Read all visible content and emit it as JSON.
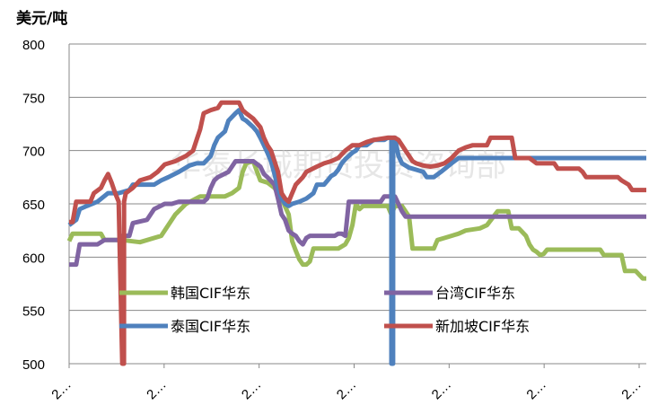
{
  "chart_data": {
    "type": "line",
    "unit_label": "美元/吨",
    "ylim": [
      500,
      800
    ],
    "y_ticks": [
      500,
      550,
      600,
      650,
      700,
      750,
      800
    ],
    "grid": true,
    "x_tick_labels": [
      "2…",
      "2…",
      "2…",
      "2…",
      "2…",
      "2…",
      "2…"
    ],
    "watermark": "华泰长城期货投资咨询部",
    "legend_placement": "bottom-inside",
    "series": [
      {
        "name": "韩国CIF华东",
        "color": "#9BBB59",
        "values": [
          [
            0,
            615
          ],
          [
            1,
            622
          ],
          [
            9,
            622
          ],
          [
            10,
            616
          ],
          [
            15,
            616
          ],
          [
            20,
            614
          ],
          [
            26,
            620
          ],
          [
            30,
            640
          ],
          [
            33,
            650
          ],
          [
            37,
            657
          ],
          [
            44,
            657
          ],
          [
            46,
            660
          ],
          [
            48,
            665
          ],
          [
            49,
            680
          ],
          [
            50,
            688
          ],
          [
            52,
            690
          ],
          [
            54,
            672
          ],
          [
            56,
            670
          ],
          [
            58,
            665
          ],
          [
            60,
            655
          ],
          [
            62,
            640
          ],
          [
            63,
            615
          ],
          [
            64,
            606
          ],
          [
            65,
            598
          ],
          [
            66,
            593
          ],
          [
            67,
            593
          ],
          [
            68,
            596
          ],
          [
            69,
            608
          ],
          [
            72,
            608
          ],
          [
            76,
            608
          ],
          [
            78,
            612
          ],
          [
            79,
            618
          ],
          [
            80,
            630
          ],
          [
            81,
            650
          ],
          [
            82,
            645
          ],
          [
            83,
            648
          ],
          [
            84,
            648
          ],
          [
            85,
            648
          ],
          [
            88,
            648
          ],
          [
            90,
            648
          ],
          [
            91,
            640
          ],
          [
            92,
            648
          ],
          [
            94,
            648
          ],
          [
            96,
            638
          ],
          [
            97,
            608
          ],
          [
            101,
            608
          ],
          [
            103,
            608
          ],
          [
            104,
            616
          ],
          [
            106,
            618
          ],
          [
            108,
            620
          ],
          [
            110,
            622
          ],
          [
            112,
            625
          ],
          [
            116,
            627
          ],
          [
            118,
            630
          ],
          [
            121,
            643
          ],
          [
            124,
            643
          ],
          [
            125,
            627
          ],
          [
            127,
            627
          ],
          [
            129,
            620
          ],
          [
            130,
            612
          ],
          [
            131,
            607
          ],
          [
            132,
            605
          ],
          [
            133,
            602
          ],
          [
            134,
            603
          ],
          [
            135,
            607
          ],
          [
            150,
            607
          ],
          [
            151,
            602
          ],
          [
            156,
            602
          ],
          [
            157,
            587
          ],
          [
            160,
            587
          ],
          [
            162,
            580
          ],
          [
            163,
            580
          ]
        ]
      },
      {
        "name": "台湾CIF华东",
        "color": "#8064A2",
        "values": [
          [
            0,
            593
          ],
          [
            2,
            593
          ],
          [
            3,
            612
          ],
          [
            8,
            612
          ],
          [
            10,
            616
          ],
          [
            14,
            616
          ],
          [
            15,
            620
          ],
          [
            17,
            620
          ],
          [
            18,
            632
          ],
          [
            22,
            635
          ],
          [
            24,
            645
          ],
          [
            27,
            650
          ],
          [
            29,
            650
          ],
          [
            31,
            652
          ],
          [
            38,
            652
          ],
          [
            39,
            655
          ],
          [
            40,
            665
          ],
          [
            41,
            672
          ],
          [
            42,
            675
          ],
          [
            45,
            680
          ],
          [
            47,
            690
          ],
          [
            52,
            690
          ],
          [
            54,
            685
          ],
          [
            55,
            678
          ],
          [
            56,
            675
          ],
          [
            58,
            668
          ],
          [
            59,
            655
          ],
          [
            60,
            640
          ],
          [
            61,
            635
          ],
          [
            62,
            625
          ],
          [
            63,
            622
          ],
          [
            64,
            620
          ],
          [
            65,
            615
          ],
          [
            66,
            612
          ],
          [
            67,
            618
          ],
          [
            68,
            620
          ],
          [
            70,
            620
          ],
          [
            72,
            620
          ],
          [
            75,
            620
          ],
          [
            76,
            622
          ],
          [
            77,
            622
          ],
          [
            78,
            620
          ],
          [
            79,
            652
          ],
          [
            84,
            652
          ],
          [
            88,
            652
          ],
          [
            89,
            657
          ],
          [
            92,
            657
          ],
          [
            93,
            650
          ],
          [
            94,
            643
          ],
          [
            95,
            638
          ],
          [
            163,
            638
          ]
        ]
      },
      {
        "name": "泰国CIF华东",
        "color": "#4F81BD",
        "values": [
          [
            0,
            630
          ],
          [
            2,
            635
          ],
          [
            3,
            645
          ],
          [
            5,
            648
          ],
          [
            8,
            652
          ],
          [
            11,
            660
          ],
          [
            14,
            660
          ],
          [
            17,
            663
          ],
          [
            18,
            668
          ],
          [
            20,
            668
          ],
          [
            24,
            668
          ],
          [
            26,
            672
          ],
          [
            28,
            675
          ],
          [
            31,
            680
          ],
          [
            34,
            686
          ],
          [
            36,
            688
          ],
          [
            38,
            688
          ],
          [
            40,
            695
          ],
          [
            41,
            705
          ],
          [
            42,
            712
          ],
          [
            44,
            718
          ],
          [
            45,
            728
          ],
          [
            47,
            735
          ],
          [
            48,
            738
          ],
          [
            49,
            730
          ],
          [
            50,
            728
          ],
          [
            51,
            725
          ],
          [
            52,
            722
          ],
          [
            53,
            718
          ],
          [
            54,
            712
          ],
          [
            55,
            705
          ],
          [
            56,
            698
          ],
          [
            57,
            690
          ],
          [
            58,
            678
          ],
          [
            59,
            665
          ],
          [
            60,
            655
          ],
          [
            61,
            650
          ],
          [
            62,
            648
          ],
          [
            63,
            650
          ],
          [
            65,
            652
          ],
          [
            67,
            655
          ],
          [
            69,
            660
          ],
          [
            70,
            668
          ],
          [
            72,
            668
          ],
          [
            73,
            672
          ],
          [
            74,
            676
          ],
          [
            75,
            678
          ],
          [
            76,
            682
          ],
          [
            77,
            688
          ],
          [
            78,
            692
          ],
          [
            80,
            698
          ],
          [
            81,
            700
          ],
          [
            82,
            705
          ],
          [
            84,
            705
          ],
          [
            86,
            710
          ],
          [
            89,
            710
          ],
          [
            90,
            712
          ],
          [
            91,
            712
          ],
          [
            91.01,
            500
          ],
          [
            91.5,
            500
          ],
          [
            91.51,
            712
          ],
          [
            92,
            712
          ],
          [
            93,
            695
          ],
          [
            94,
            688
          ],
          [
            95,
            686
          ],
          [
            96,
            684
          ],
          [
            98,
            682
          ],
          [
            100,
            680
          ],
          [
            101,
            675
          ],
          [
            103,
            675
          ],
          [
            105,
            680
          ],
          [
            108,
            688
          ],
          [
            110,
            693
          ],
          [
            112,
            693
          ],
          [
            116,
            693
          ],
          [
            118,
            693
          ],
          [
            163,
            693
          ]
        ]
      },
      {
        "name": "新加坡CIF华东",
        "color": "#C0504D",
        "values": [
          [
            0,
            633
          ],
          [
            1,
            633
          ],
          [
            2,
            652
          ],
          [
            6,
            652
          ],
          [
            7,
            660
          ],
          [
            9,
            665
          ],
          [
            10,
            672
          ],
          [
            11,
            678
          ],
          [
            12,
            670
          ],
          [
            13,
            660
          ],
          [
            14,
            652
          ],
          [
            15,
            500
          ],
          [
            15.5,
            500
          ],
          [
            15.51,
            652
          ],
          [
            16,
            660
          ],
          [
            18,
            665
          ],
          [
            20,
            672
          ],
          [
            23,
            675
          ],
          [
            25,
            680
          ],
          [
            27,
            687
          ],
          [
            30,
            690
          ],
          [
            33,
            695
          ],
          [
            35,
            700
          ],
          [
            36,
            710
          ],
          [
            37,
            720
          ],
          [
            38,
            735
          ],
          [
            40,
            738
          ],
          [
            42,
            740
          ],
          [
            43,
            745
          ],
          [
            46,
            745
          ],
          [
            48,
            745
          ],
          [
            49,
            738
          ],
          [
            50,
            735
          ],
          [
            52,
            730
          ],
          [
            54,
            722
          ],
          [
            55,
            712
          ],
          [
            56,
            705
          ],
          [
            57,
            700
          ],
          [
            58,
            690
          ],
          [
            59,
            680
          ],
          [
            60,
            660
          ],
          [
            61,
            655
          ],
          [
            62,
            652
          ],
          [
            63,
            660
          ],
          [
            64,
            668
          ],
          [
            66,
            675
          ],
          [
            67,
            680
          ],
          [
            70,
            685
          ],
          [
            72,
            688
          ],
          [
            74,
            690
          ],
          [
            76,
            693
          ],
          [
            78,
            700
          ],
          [
            80,
            705
          ],
          [
            82,
            705
          ],
          [
            84,
            708
          ],
          [
            86,
            710
          ],
          [
            90,
            712
          ],
          [
            92,
            712
          ],
          [
            93,
            710
          ],
          [
            95,
            700
          ],
          [
            96,
            695
          ],
          [
            97,
            690
          ],
          [
            98,
            688
          ],
          [
            100,
            686
          ],
          [
            102,
            685
          ],
          [
            104,
            686
          ],
          [
            106,
            688
          ],
          [
            108,
            693
          ],
          [
            110,
            700
          ],
          [
            112,
            703
          ],
          [
            114,
            705
          ],
          [
            116,
            705
          ],
          [
            118,
            705
          ],
          [
            119,
            712
          ],
          [
            122,
            712
          ],
          [
            125,
            712
          ],
          [
            126,
            693
          ],
          [
            130,
            693
          ],
          [
            132,
            688
          ],
          [
            137,
            688
          ],
          [
            138,
            683
          ],
          [
            144,
            683
          ],
          [
            145,
            680
          ],
          [
            146,
            675
          ],
          [
            155,
            675
          ],
          [
            156,
            672
          ],
          [
            158,
            668
          ],
          [
            159,
            663
          ],
          [
            161,
            663
          ],
          [
            163,
            663
          ]
        ]
      }
    ]
  }
}
